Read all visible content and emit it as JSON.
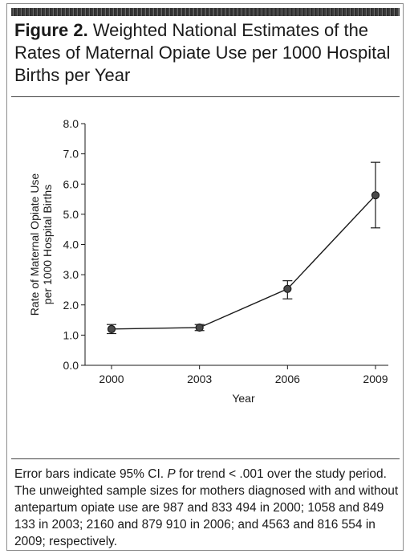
{
  "figure": {
    "label": "Figure 2.",
    "title": "Weighted National Estimates of the Rates of Maternal Opiate Use per 1000 Hospital Births per Year"
  },
  "caption": {
    "part1": "Error bars indicate 95% CI. ",
    "p": "P",
    "part2": " for trend < .001 over the study period. The unweighted sample sizes for mothers diagnosed with and without antepartum opiate use are 987 and 833 494 in 2000; 1058 and 849 133 in 2003; 2160 and 879 910 in 2006; and 4563 and 816 554 in 2009; respectively."
  },
  "chart_data": {
    "type": "line",
    "xlabel": "Year",
    "ylabel": "Rate of Maternal Opiate Use per 1000 Hospital Births",
    "ylabel_lines": [
      "Rate of Maternal Opiate Use",
      "per 1000 Hospital Births"
    ],
    "categories": [
      "2000",
      "2003",
      "2006",
      "2009"
    ],
    "series": [
      {
        "values": [
          1.2,
          1.25,
          2.53,
          5.63
        ],
        "ci_low": [
          1.05,
          1.15,
          2.2,
          4.55
        ],
        "ci_high": [
          1.35,
          1.35,
          2.8,
          6.72
        ]
      }
    ],
    "ylim": [
      0,
      8
    ],
    "yticks": [
      "0.0",
      "1.0",
      "2.0",
      "3.0",
      "4.0",
      "5.0",
      "6.0",
      "7.0",
      "8.0"
    ],
    "grid": false,
    "colors": {
      "line": "#1a1a1a",
      "marker": "#4a4a4a"
    }
  }
}
